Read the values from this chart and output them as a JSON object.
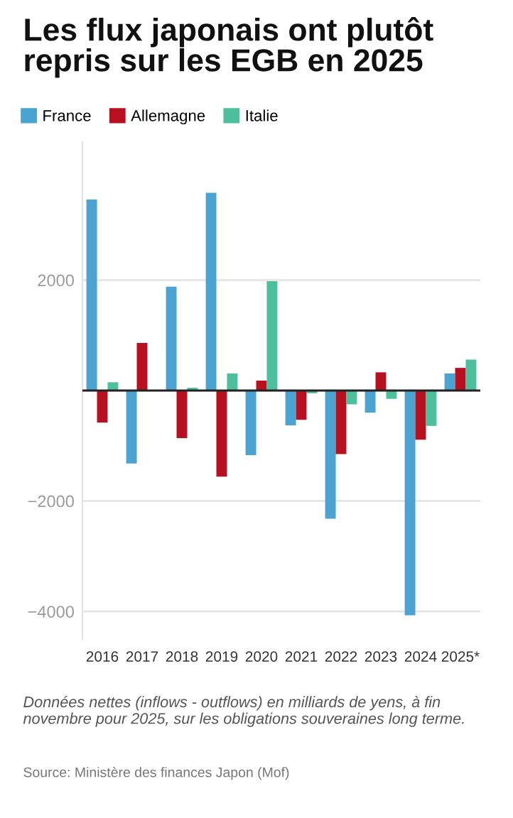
{
  "chart_data": {
    "type": "bar",
    "title": "Les flux japonais ont plutôt repris sur les EGB en 2025",
    "categories": [
      "2016",
      "2017",
      "2018",
      "2019",
      "2020",
      "2021",
      "2022",
      "2023",
      "2024",
      "2025*"
    ],
    "series": [
      {
        "name": "France",
        "color": "#4ba3d1",
        "values": [
          3460,
          -1320,
          1880,
          3580,
          -1170,
          -630,
          -2320,
          -400,
          -4070,
          310
        ]
      },
      {
        "name": "Allemagne",
        "color": "#b8101f",
        "values": [
          -580,
          860,
          -860,
          -1560,
          180,
          -530,
          -1150,
          330,
          -890,
          410
        ]
      },
      {
        "name": "Italie",
        "color": "#4dbf9c",
        "values": [
          150,
          0,
          50,
          310,
          1980,
          -50,
          -250,
          -150,
          -640,
          560
        ]
      }
    ],
    "ylim": [
      -4500,
      4500
    ],
    "yticks": [
      {
        "value": -4000,
        "label": "−4000"
      },
      {
        "value": -2000,
        "label": "−2000"
      },
      2000
    ],
    "ref_lines": [
      {
        "axis": "y",
        "value": 0,
        "color": "#222222"
      }
    ],
    "grid": "y",
    "legend": "top left",
    "annotations": [
      "Données nettes (inflows - outflows) en milliards de yens, à fin novembre pour 2025, sur les obligations souveraines long terme.",
      "Source: Ministère des finances Japon (Mof)"
    ]
  }
}
